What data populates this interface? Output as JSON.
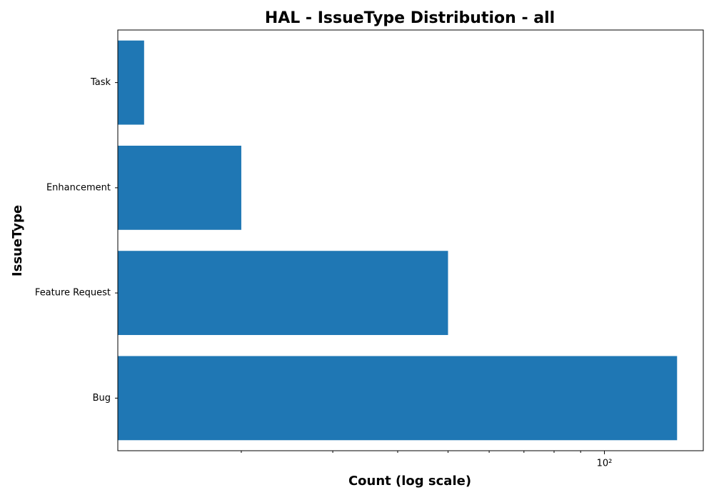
{
  "chart_data": {
    "type": "barh",
    "title": "HAL - IssueType Distribution - all",
    "xlabel": "Count (log scale)",
    "ylabel": "IssueType",
    "categories": [
      "Bug",
      "Feature Request",
      "Enhancement",
      "Task"
    ],
    "values": [
      138,
      50,
      20,
      13
    ],
    "color": "#1f77b4",
    "xscale": "log",
    "xlim": [
      11.57,
      155
    ],
    "xticks": [
      {
        "value": 100,
        "label": "10²"
      }
    ],
    "xminorticks": [
      20,
      30,
      40,
      50,
      60,
      70,
      80,
      90
    ]
  }
}
